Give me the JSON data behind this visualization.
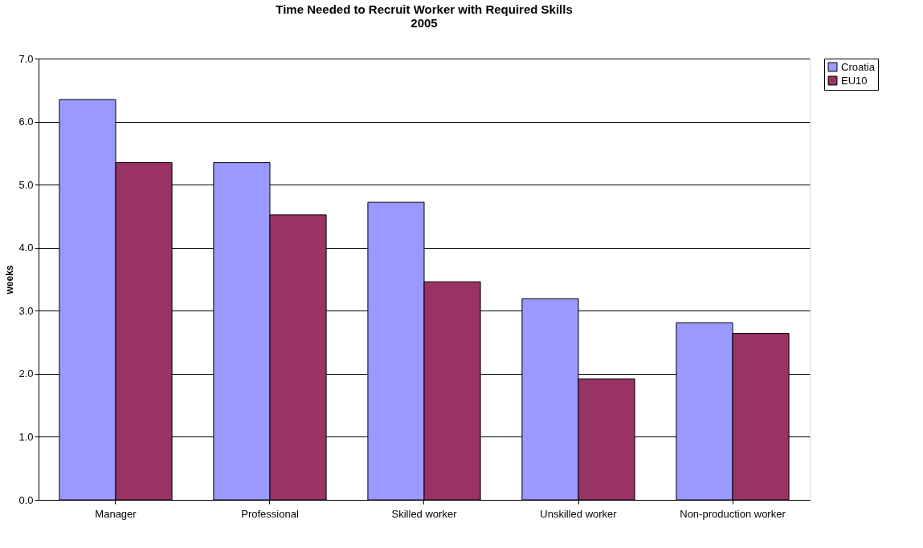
{
  "chart_data": {
    "type": "bar",
    "title": "Time Needed to Recruit Worker with Required Skills",
    "subtitle": "2005",
    "ylabel": "weeks",
    "categories": [
      "Manager",
      "Professional",
      "Skilled worker",
      "Unskilled worker",
      "Non-production worker"
    ],
    "series": [
      {
        "name": "Croatia",
        "color": "#9999ff",
        "values": [
          6.35,
          5.35,
          4.72,
          3.19,
          2.81
        ]
      },
      {
        "name": "EU10",
        "color": "#993366",
        "values": [
          5.35,
          4.52,
          3.46,
          1.92,
          2.64
        ]
      }
    ],
    "ylim": [
      0,
      7
    ],
    "yticks": [
      {
        "value": 0,
        "label": "0.0"
      },
      {
        "value": 1,
        "label": "1.0"
      },
      {
        "value": 2,
        "label": "2.0"
      },
      {
        "value": 3,
        "label": "3.0"
      },
      {
        "value": 4,
        "label": "4.0"
      },
      {
        "value": 5,
        "label": "5.0"
      },
      {
        "value": 6,
        "label": "6.0"
      },
      {
        "value": 7,
        "label": "7.0"
      }
    ],
    "grid": "y",
    "legend": "right"
  }
}
